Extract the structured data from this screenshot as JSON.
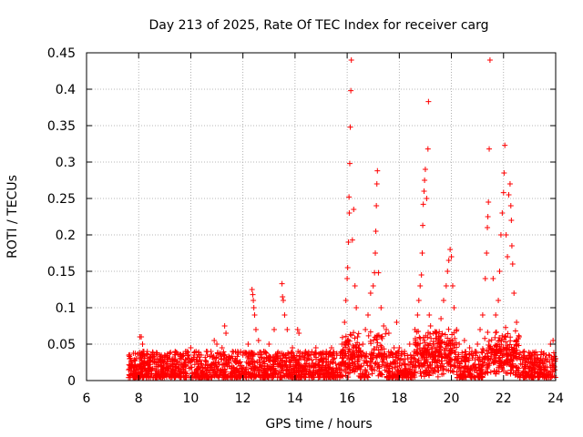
{
  "chart_data": {
    "type": "scatter",
    "title": "Day 213 of 2025, Rate Of TEC Index for receiver carg",
    "xlabel": "GPS time / hours",
    "ylabel": "ROTI / TECUs",
    "xlim": [
      6,
      24
    ],
    "ylim": [
      0,
      0.45
    ],
    "xticks": [
      6,
      8,
      10,
      12,
      14,
      16,
      18,
      20,
      22,
      24
    ],
    "xtick_labels": [
      "6",
      "8",
      "10",
      "12",
      "14",
      "16",
      "18",
      "20",
      "22",
      "24"
    ],
    "yticks": [
      0,
      0.05,
      0.1,
      0.15,
      0.2,
      0.25,
      0.3,
      0.35,
      0.4,
      0.45
    ],
    "ytick_labels": [
      "0",
      "0.05",
      "0.1",
      "0.15",
      "0.2",
      "0.25",
      "0.3",
      "0.35",
      "0.4",
      "0.45"
    ],
    "grid": true,
    "marker": "+",
    "series": [
      {
        "name": "ROTI",
        "color": "#ff0000",
        "points": [
          [
            7.65,
            0.03
          ],
          [
            7.7,
            0.02
          ],
          [
            7.8,
            0.01
          ],
          [
            7.9,
            0.03
          ],
          [
            8.0,
            0.02
          ],
          [
            8.05,
            0.06
          ],
          [
            8.1,
            0.06
          ],
          [
            8.15,
            0.05
          ],
          [
            8.2,
            0.04
          ],
          [
            8.4,
            0.03
          ],
          [
            8.6,
            0.035
          ],
          [
            8.8,
            0.03
          ],
          [
            9.0,
            0.035
          ],
          [
            9.2,
            0.03
          ],
          [
            9.4,
            0.04
          ],
          [
            9.6,
            0.035
          ],
          [
            9.8,
            0.04
          ],
          [
            10.0,
            0.045
          ],
          [
            10.2,
            0.04
          ],
          [
            10.4,
            0.035
          ],
          [
            10.6,
            0.04
          ],
          [
            10.8,
            0.035
          ],
          [
            10.9,
            0.055
          ],
          [
            11.0,
            0.05
          ],
          [
            11.2,
            0.045
          ],
          [
            11.3,
            0.075
          ],
          [
            11.35,
            0.065
          ],
          [
            11.6,
            0.04
          ],
          [
            11.8,
            0.04
          ],
          [
            12.0,
            0.035
          ],
          [
            12.2,
            0.05
          ],
          [
            12.35,
            0.125
          ],
          [
            12.38,
            0.118
          ],
          [
            12.4,
            0.11
          ],
          [
            12.42,
            0.1
          ],
          [
            12.45,
            0.09
          ],
          [
            12.5,
            0.07
          ],
          [
            12.6,
            0.055
          ],
          [
            12.8,
            0.04
          ],
          [
            13.0,
            0.05
          ],
          [
            13.2,
            0.07
          ],
          [
            13.5,
            0.133
          ],
          [
            13.52,
            0.115
          ],
          [
            13.55,
            0.11
          ],
          [
            13.6,
            0.09
          ],
          [
            13.7,
            0.07
          ],
          [
            13.9,
            0.045
          ],
          [
            14.1,
            0.07
          ],
          [
            14.15,
            0.065
          ],
          [
            14.4,
            0.04
          ],
          [
            14.6,
            0.035
          ],
          [
            14.8,
            0.045
          ],
          [
            15.0,
            0.03
          ],
          [
            15.2,
            0.04
          ],
          [
            15.4,
            0.045
          ],
          [
            15.6,
            0.035
          ],
          [
            15.8,
            0.05
          ],
          [
            15.9,
            0.08
          ],
          [
            15.95,
            0.11
          ],
          [
            16.0,
            0.14
          ],
          [
            16.02,
            0.155
          ],
          [
            16.05,
            0.19
          ],
          [
            16.07,
            0.252
          ],
          [
            16.08,
            0.23
          ],
          [
            16.1,
            0.298
          ],
          [
            16.12,
            0.348
          ],
          [
            16.14,
            0.398
          ],
          [
            16.16,
            0.44
          ],
          [
            16.2,
            0.193
          ],
          [
            16.25,
            0.235
          ],
          [
            16.3,
            0.13
          ],
          [
            16.35,
            0.1
          ],
          [
            16.4,
            0.06
          ],
          [
            16.5,
            0.04
          ],
          [
            16.6,
            0.05
          ],
          [
            16.7,
            0.07
          ],
          [
            16.8,
            0.09
          ],
          [
            16.9,
            0.12
          ],
          [
            17.0,
            0.13
          ],
          [
            17.05,
            0.148
          ],
          [
            17.08,
            0.175
          ],
          [
            17.1,
            0.205
          ],
          [
            17.12,
            0.24
          ],
          [
            17.14,
            0.27
          ],
          [
            17.16,
            0.288
          ],
          [
            17.2,
            0.148
          ],
          [
            17.3,
            0.1
          ],
          [
            17.4,
            0.075
          ],
          [
            17.5,
            0.07
          ],
          [
            17.6,
            0.065
          ],
          [
            17.8,
            0.045
          ],
          [
            17.9,
            0.08
          ],
          [
            18.0,
            0.045
          ],
          [
            18.2,
            0.04
          ],
          [
            18.4,
            0.05
          ],
          [
            18.6,
            0.07
          ],
          [
            18.7,
            0.09
          ],
          [
            18.75,
            0.11
          ],
          [
            18.8,
            0.13
          ],
          [
            18.85,
            0.145
          ],
          [
            18.88,
            0.175
          ],
          [
            18.9,
            0.213
          ],
          [
            18.92,
            0.242
          ],
          [
            18.95,
            0.26
          ],
          [
            18.97,
            0.275
          ],
          [
            19.0,
            0.29
          ],
          [
            19.05,
            0.25
          ],
          [
            19.1,
            0.318
          ],
          [
            19.12,
            0.383
          ],
          [
            19.15,
            0.09
          ],
          [
            19.2,
            0.075
          ],
          [
            19.3,
            0.05
          ],
          [
            19.5,
            0.06
          ],
          [
            19.6,
            0.085
          ],
          [
            19.7,
            0.11
          ],
          [
            19.8,
            0.13
          ],
          [
            19.85,
            0.15
          ],
          [
            19.9,
            0.165
          ],
          [
            19.95,
            0.18
          ],
          [
            20.0,
            0.17
          ],
          [
            20.05,
            0.13
          ],
          [
            20.1,
            0.1
          ],
          [
            20.2,
            0.07
          ],
          [
            20.3,
            0.05
          ],
          [
            20.5,
            0.055
          ],
          [
            20.7,
            0.045
          ],
          [
            20.9,
            0.04
          ],
          [
            21.0,
            0.05
          ],
          [
            21.1,
            0.07
          ],
          [
            21.2,
            0.09
          ],
          [
            21.3,
            0.14
          ],
          [
            21.35,
            0.175
          ],
          [
            21.38,
            0.21
          ],
          [
            21.4,
            0.225
          ],
          [
            21.42,
            0.245
          ],
          [
            21.45,
            0.318
          ],
          [
            21.48,
            0.44
          ],
          [
            21.6,
            0.14
          ],
          [
            21.7,
            0.09
          ],
          [
            21.8,
            0.11
          ],
          [
            21.85,
            0.15
          ],
          [
            21.9,
            0.2
          ],
          [
            21.95,
            0.23
          ],
          [
            22.0,
            0.258
          ],
          [
            22.02,
            0.285
          ],
          [
            22.05,
            0.323
          ],
          [
            22.1,
            0.2
          ],
          [
            22.15,
            0.17
          ],
          [
            22.2,
            0.255
          ],
          [
            22.25,
            0.27
          ],
          [
            22.28,
            0.24
          ],
          [
            22.3,
            0.22
          ],
          [
            22.32,
            0.185
          ],
          [
            22.35,
            0.16
          ],
          [
            22.4,
            0.12
          ],
          [
            22.5,
            0.08
          ],
          [
            22.6,
            0.06
          ],
          [
            22.8,
            0.04
          ],
          [
            23.0,
            0.035
          ],
          [
            23.2,
            0.03
          ],
          [
            23.4,
            0.025
          ],
          [
            23.6,
            0.03
          ],
          [
            23.8,
            0.05
          ],
          [
            23.9,
            0.055
          ],
          [
            24.0,
            0.03
          ]
        ]
      }
    ]
  }
}
